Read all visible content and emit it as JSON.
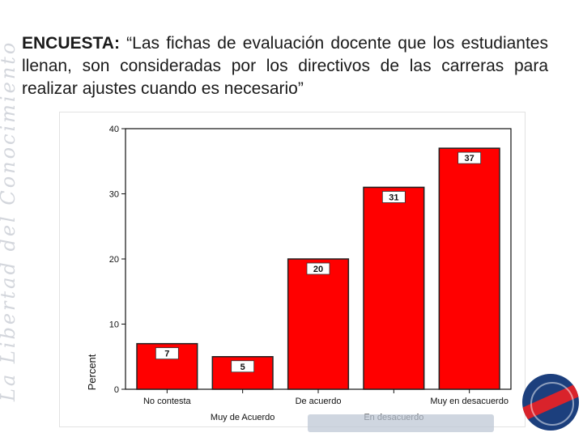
{
  "watermark": "La Libertad del Conocimiento",
  "title": {
    "lead": "ENCUESTA:",
    "rest": " “Las fichas de evaluación docente que los estudiantes llenan, son consideradas por los directivos de las carreras para realizar ajustes cuando es necesario”"
  },
  "colors": {
    "bar": "#ff0000",
    "bar_stroke": "#222222",
    "label_box": "#ffffff"
  },
  "chart_data": {
    "type": "bar",
    "categories": [
      "No contesta",
      "Muy de Acuerdo",
      "De acuerdo",
      "En desacuerdo",
      "Muy en desacuerdo"
    ],
    "values": [
      7,
      5,
      20,
      31,
      37
    ],
    "data_labels": [
      "7",
      "5",
      "20",
      "31",
      "37"
    ],
    "title": "",
    "xlabel": "",
    "ylabel": "Percent",
    "ylim": [
      0,
      40
    ],
    "yticks": [
      0,
      10,
      20,
      30,
      40
    ],
    "category_label_rows": [
      "top",
      "bottom",
      "top",
      "bottom",
      "top"
    ],
    "grid": false,
    "legend": "none"
  }
}
